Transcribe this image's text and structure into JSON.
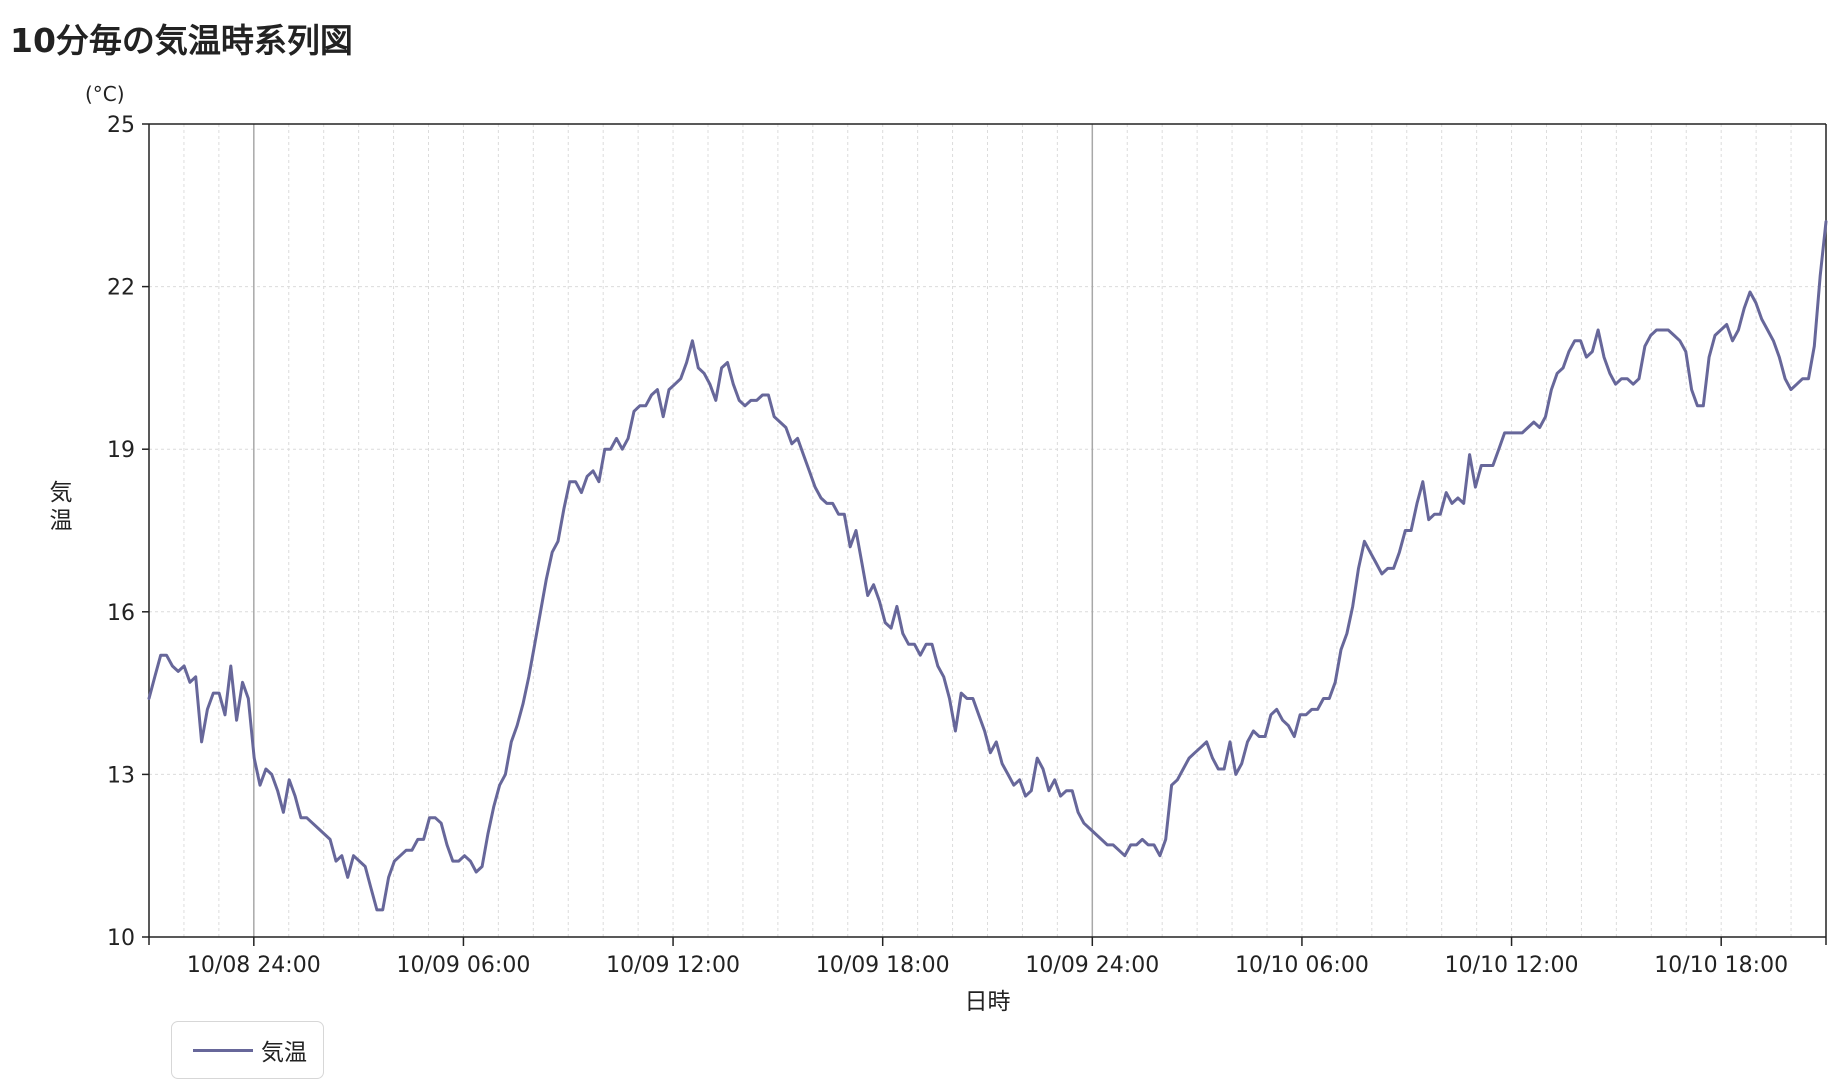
{
  "title": "10分毎の気温時系列図",
  "colors": {
    "series": "#67679a",
    "axis": "#222222",
    "major_grid": "#a8a8a8",
    "minor_grid": "#dcdcdc"
  },
  "chart_data": {
    "type": "line",
    "title": "10分毎の気温時系列図",
    "xlabel": "日時",
    "ylabel": "気温",
    "y_unit": "(°C)",
    "ylim": [
      10,
      25
    ],
    "y_ticks": [
      10,
      13,
      16,
      19,
      22,
      25
    ],
    "xlim": [
      "10/08 21:00",
      "10/10 21:00"
    ],
    "interval_minutes": 10,
    "x_ticks": [
      {
        "label": "10/08 24:00",
        "hours": 3
      },
      {
        "label": "10/09 06:00",
        "hours": 9
      },
      {
        "label": "10/09 12:00",
        "hours": 15
      },
      {
        "label": "10/09 18:00",
        "hours": 21
      },
      {
        "label": "10/09 24:00",
        "hours": 27
      },
      {
        "label": "10/10 06:00",
        "hours": 33
      },
      {
        "label": "10/10 12:00",
        "hours": 39
      },
      {
        "label": "10/10 18:00",
        "hours": 45
      }
    ],
    "grid": true,
    "legend": "bottom-left",
    "series": [
      {
        "name": "気温",
        "values": [
          14.4,
          14.8,
          15.2,
          15.2,
          15.0,
          14.9,
          15.0,
          14.7,
          14.8,
          13.6,
          14.2,
          14.5,
          14.5,
          14.1,
          15.0,
          14.0,
          14.7,
          14.4,
          13.3,
          12.8,
          13.1,
          13.0,
          12.7,
          12.3,
          12.9,
          12.6,
          12.2,
          12.2,
          12.1,
          12.0,
          11.9,
          11.8,
          11.4,
          11.5,
          11.1,
          11.5,
          11.4,
          11.3,
          10.9,
          10.5,
          10.5,
          11.1,
          11.4,
          11.5,
          11.6,
          11.6,
          11.8,
          11.8,
          12.2,
          12.2,
          12.1,
          11.7,
          11.4,
          11.4,
          11.5,
          11.4,
          11.2,
          11.3,
          11.9,
          12.4,
          12.8,
          13.0,
          13.6,
          13.9,
          14.3,
          14.8,
          15.4,
          16.0,
          16.6,
          17.1,
          17.3,
          17.9,
          18.4,
          18.4,
          18.2,
          18.5,
          18.6,
          18.4,
          19.0,
          19.0,
          19.2,
          19.0,
          19.2,
          19.7,
          19.8,
          19.8,
          20.0,
          20.1,
          19.6,
          20.1,
          20.2,
          20.3,
          20.6,
          21.0,
          20.5,
          20.4,
          20.2,
          19.9,
          20.5,
          20.6,
          20.2,
          19.9,
          19.8,
          19.9,
          19.9,
          20.0,
          20.0,
          19.6,
          19.5,
          19.4,
          19.1,
          19.2,
          18.9,
          18.6,
          18.3,
          18.1,
          18.0,
          18.0,
          17.8,
          17.8,
          17.2,
          17.5,
          16.9,
          16.3,
          16.5,
          16.2,
          15.8,
          15.7,
          16.1,
          15.6,
          15.4,
          15.4,
          15.2,
          15.4,
          15.4,
          15.0,
          14.8,
          14.4,
          13.8,
          14.5,
          14.4,
          14.4,
          14.1,
          13.8,
          13.4,
          13.6,
          13.2,
          13.0,
          12.8,
          12.9,
          12.6,
          12.7,
          13.3,
          13.1,
          12.7,
          12.9,
          12.6,
          12.7,
          12.7,
          12.3,
          12.1,
          12.0,
          11.9,
          11.8,
          11.7,
          11.7,
          11.6,
          11.5,
          11.7,
          11.7,
          11.8,
          11.7,
          11.7,
          11.5,
          11.8,
          12.8,
          12.9,
          13.1,
          13.3,
          13.4,
          13.5,
          13.6,
          13.3,
          13.1,
          13.1,
          13.6,
          13.0,
          13.2,
          13.6,
          13.8,
          13.7,
          13.7,
          14.1,
          14.2,
          14.0,
          13.9,
          13.7,
          14.1,
          14.1,
          14.2,
          14.2,
          14.4,
          14.4,
          14.7,
          15.3,
          15.6,
          16.1,
          16.8,
          17.3,
          17.1,
          16.9,
          16.7,
          16.8,
          16.8,
          17.1,
          17.5,
          17.5,
          18.0,
          18.4,
          17.7,
          17.8,
          17.8,
          18.2,
          18.0,
          18.1,
          18.0,
          18.9,
          18.3,
          18.7,
          18.7,
          18.7,
          19.0,
          19.3,
          19.3,
          19.3,
          19.3,
          19.4,
          19.5,
          19.4,
          19.6,
          20.1,
          20.4,
          20.5,
          20.8,
          21.0,
          21.0,
          20.7,
          20.8,
          21.2,
          20.7,
          20.4,
          20.2,
          20.3,
          20.3,
          20.2,
          20.3,
          20.9,
          21.1,
          21.2,
          21.2,
          21.2,
          21.1,
          21.0,
          20.8,
          20.1,
          19.8,
          19.8,
          20.7,
          21.1,
          21.2,
          21.3,
          21.0,
          21.2,
          21.6,
          21.9,
          21.7,
          21.4,
          21.2,
          21.0,
          20.7,
          20.3,
          20.1,
          20.2,
          20.3,
          20.3,
          20.9,
          22.2,
          23.2
        ]
      }
    ]
  }
}
